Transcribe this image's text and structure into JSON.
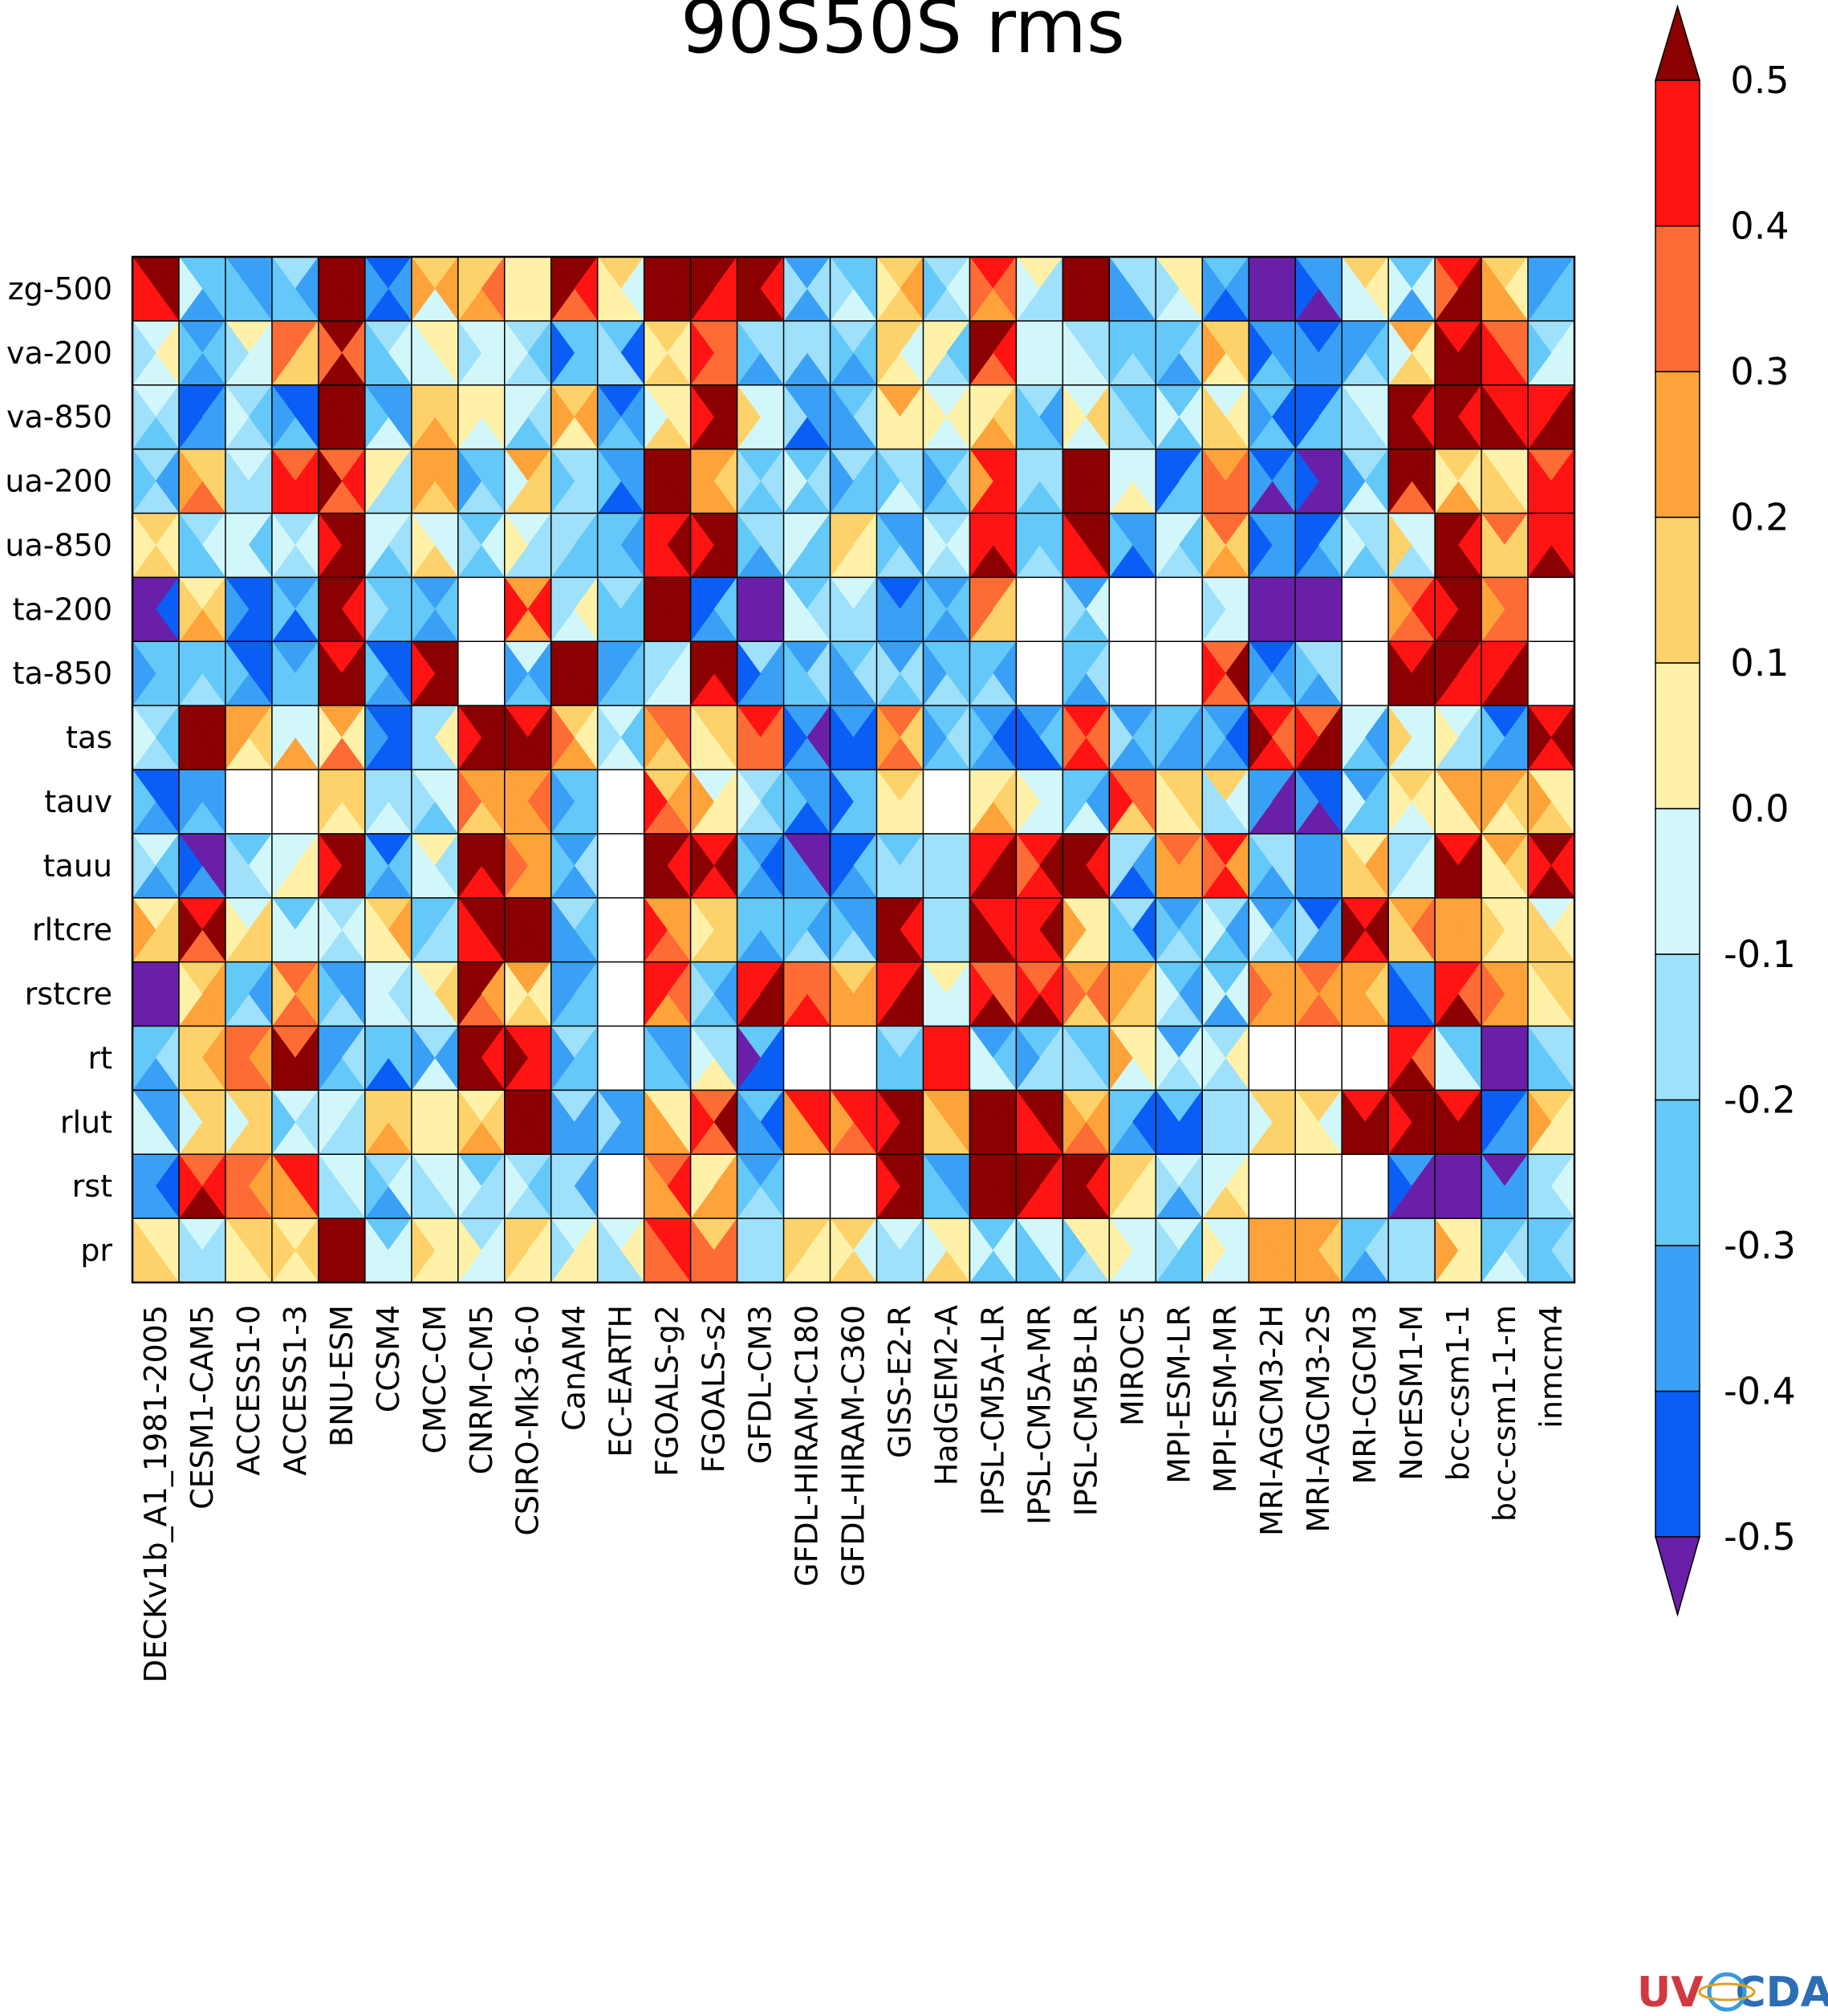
{
  "chart_data": {
    "type": "heatmap",
    "title": "90S50S rms",
    "cell_split": "each cell is divided into 4 triangles (top, right, bottom, left)",
    "rows": [
      "zg-500",
      "va-200",
      "va-850",
      "ua-200",
      "ua-850",
      "ta-200",
      "ta-850",
      "tas",
      "tauv",
      "tauu",
      "rltcre",
      "rstcre",
      "rt",
      "rlut",
      "rst",
      "pr"
    ],
    "columns": [
      "DECKv1b_A1_1981-2005",
      "CESM1-CAM5",
      "ACCESS1-0",
      "ACCESS1-3",
      "BNU-ESM",
      "CCSM4",
      "CMCC-CM",
      "CNRM-CM5",
      "CSIRO-Mk3-6-0",
      "CanAM4",
      "EC-EARTH",
      "FGOALS-g2",
      "FGOALS-s2",
      "GFDL-CM3",
      "GFDL-HIRAM-C180",
      "GFDL-HIRAM-C360",
      "GISS-E2-R",
      "HadGEM2-A",
      "IPSL-CM5A-LR",
      "IPSL-CM5A-MR",
      "IPSL-CM5B-LR",
      "MIROC5",
      "MPI-ESM-LR",
      "MPI-ESM-MR",
      "MRI-AGCM3-2H",
      "MRI-AGCM3-2S",
      "MRI-CGCM3",
      "NorESM1-M",
      "bcc-csm1-1",
      "bcc-csm1-1-m",
      "inmcm4"
    ],
    "row_base_values": [
      [
        0.55,
        -0.2,
        -0.3,
        -0.25,
        0.55,
        -0.4,
        0.1,
        0.2,
        0.15,
        0.45,
        0.0,
        0.55,
        0.5,
        0.55,
        -0.3,
        -0.2,
        0.1,
        -0.2,
        0.4,
        -0.1,
        0.55,
        -0.2,
        -0.1,
        -0.4,
        -0.6,
        -0.5,
        0.05,
        -0.2,
        0.5,
        0.15,
        -0.3
      ],
      [
        -0.1,
        -0.25,
        0.0,
        0.25,
        0.45,
        -0.2,
        0.05,
        -0.1,
        -0.15,
        -0.35,
        -0.3,
        0.15,
        0.45,
        -0.2,
        -0.2,
        -0.25,
        0.05,
        -0.1,
        0.45,
        -0.1,
        -0.1,
        -0.2,
        -0.3,
        0.1,
        -0.4,
        -0.4,
        -0.2,
        0.1,
        0.5,
        0.35,
        -0.1
      ],
      [
        -0.2,
        -0.35,
        -0.1,
        -0.3,
        0.55,
        -0.2,
        0.1,
        0.1,
        -0.1,
        0.15,
        -0.3,
        0.05,
        0.55,
        0.0,
        -0.3,
        -0.25,
        0.1,
        0.0,
        0.2,
        -0.2,
        0.0,
        -0.2,
        -0.1,
        0.05,
        -0.35,
        -0.3,
        -0.1,
        0.55,
        0.55,
        0.55,
        0.55
      ],
      [
        -0.2,
        0.2,
        -0.2,
        0.4,
        0.4,
        -0.1,
        0.15,
        -0.2,
        0.1,
        -0.2,
        -0.3,
        0.55,
        0.25,
        -0.25,
        -0.2,
        -0.25,
        -0.1,
        -0.2,
        0.35,
        -0.15,
        0.55,
        0.05,
        -0.3,
        0.35,
        -0.4,
        -0.45,
        -0.2,
        0.5,
        0.2,
        0.05,
        0.4
      ],
      [
        0.1,
        -0.15,
        -0.2,
        -0.1,
        0.5,
        -0.2,
        0.05,
        -0.1,
        -0.1,
        -0.2,
        -0.3,
        0.55,
        0.5,
        -0.2,
        -0.15,
        0.0,
        -0.2,
        -0.1,
        0.55,
        -0.2,
        0.55,
        -0.3,
        -0.1,
        0.3,
        -0.35,
        -0.3,
        -0.15,
        0.0,
        0.55,
        0.25,
        0.5
      ],
      [
        -0.6,
        0.2,
        -0.35,
        -0.3,
        0.55,
        -0.2,
        -0.2,
        9,
        0.3,
        0.0,
        -0.2,
        0.55,
        -0.3,
        -0.6,
        -0.15,
        -0.15,
        -0.4,
        -0.3,
        0.2,
        9,
        -0.2,
        9,
        9,
        -0.1,
        -0.6,
        -0.6,
        9,
        0.35,
        0.55,
        0.3,
        9
      ],
      [
        -0.3,
        -0.3,
        -0.35,
        -0.3,
        0.55,
        -0.35,
        0.55,
        9,
        -0.2,
        0.55,
        -0.3,
        -0.1,
        0.5,
        -0.3,
        -0.2,
        -0.2,
        -0.2,
        -0.2,
        -0.2,
        9,
        -0.25,
        9,
        9,
        0.5,
        -0.3,
        -0.3,
        9,
        0.55,
        0.55,
        0.55,
        9
      ],
      [
        -0.2,
        0.55,
        0.15,
        0.1,
        0.2,
        -0.35,
        -0.1,
        0.55,
        0.55,
        0.2,
        -0.2,
        0.25,
        0.05,
        0.4,
        -0.4,
        -0.45,
        0.3,
        -0.2,
        -0.3,
        -0.4,
        0.4,
        -0.3,
        -0.3,
        -0.3,
        0.45,
        0.45,
        -0.2,
        0.05,
        -0.1,
        -0.3,
        0.55
      ],
      [
        -0.35,
        -0.25,
        9,
        9,
        0.2,
        -0.1,
        -0.15,
        0.2,
        0.25,
        -0.2,
        9,
        0.3,
        0.1,
        -0.15,
        -0.4,
        -0.35,
        0.15,
        9,
        0.15,
        0.1,
        -0.2,
        0.3,
        0.05,
        0.0,
        -0.45,
        -0.45,
        -0.2,
        0.05,
        0.15,
        0.2,
        0.2
      ],
      [
        -0.2,
        -0.4,
        -0.15,
        0.05,
        0.55,
        -0.35,
        -0.1,
        0.5,
        0.3,
        -0.2,
        9,
        0.55,
        0.5,
        -0.4,
        -0.4,
        -0.35,
        -0.1,
        -0.2,
        0.55,
        0.5,
        0.55,
        -0.3,
        0.3,
        0.3,
        -0.3,
        -0.4,
        0.1,
        -0.1,
        0.55,
        0.1,
        0.45
      ],
      [
        0.1,
        0.45,
        0.05,
        -0.1,
        -0.2,
        0.2,
        -0.2,
        0.55,
        0.55,
        -0.25,
        9,
        0.3,
        0.1,
        -0.3,
        -0.2,
        -0.3,
        0.55,
        -0.1,
        0.55,
        0.55,
        0.1,
        -0.3,
        -0.2,
        -0.2,
        -0.2,
        -0.3,
        0.55,
        0.2,
        0.3,
        0.0,
        0.1
      ],
      [
        -0.6,
        0.2,
        -0.25,
        0.3,
        -0.3,
        -0.1,
        0.05,
        0.4,
        0.15,
        -0.3,
        9,
        0.3,
        -0.2,
        0.55,
        0.4,
        0.2,
        0.55,
        -0.1,
        0.45,
        0.4,
        0.3,
        0.15,
        -0.2,
        -0.2,
        0.25,
        0.25,
        0.2,
        -0.4,
        0.45,
        0.3,
        0.15
      ],
      [
        -0.3,
        0.25,
        0.3,
        0.45,
        -0.2,
        -0.35,
        -0.2,
        0.55,
        0.55,
        -0.2,
        9,
        -0.3,
        -0.1,
        -0.4,
        9,
        9,
        -0.2,
        0.35,
        -0.2,
        -0.3,
        -0.2,
        0.1,
        -0.2,
        -0.1,
        9,
        9,
        9,
        0.5,
        -0.2,
        -0.6,
        -0.2
      ],
      [
        -0.2,
        0.1,
        0.1,
        -0.2,
        -0.1,
        0.25,
        0.05,
        0.15,
        0.55,
        -0.3,
        -0.3,
        0.1,
        0.4,
        -0.3,
        0.35,
        0.35,
        0.55,
        0.15,
        0.55,
        0.55,
        0.3,
        -0.35,
        -0.3,
        -0.2,
        0.05,
        0.1,
        0.55,
        0.55,
        0.55,
        -0.35,
        0.15
      ],
      [
        -0.4,
        0.5,
        0.25,
        0.4,
        -0.2,
        -0.2,
        -0.1,
        -0.1,
        -0.2,
        -0.2,
        9,
        0.3,
        0.1,
        -0.25,
        9,
        9,
        0.55,
        -0.3,
        0.55,
        0.55,
        0.5,
        0.05,
        -0.2,
        0.0,
        9,
        9,
        9,
        -0.5,
        -0.6,
        -0.5,
        -0.2
      ],
      [
        0.05,
        -0.15,
        0.15,
        0.15,
        0.55,
        -0.1,
        0.1,
        -0.05,
        0.1,
        0.0,
        -0.05,
        0.45,
        0.3,
        -0.2,
        0.1,
        0.05,
        -0.2,
        0.1,
        -0.15,
        -0.15,
        -0.1,
        -0.05,
        -0.1,
        0.0,
        0.15,
        0.25,
        -0.2,
        -0.1,
        0.1,
        -0.15,
        -0.2
      ]
    ],
    "missing_value_marker": 9,
    "colorbar": {
      "levels": [
        -0.5,
        -0.4,
        -0.3,
        -0.2,
        -0.1,
        0.0,
        0.1,
        0.2,
        0.3,
        0.4,
        0.5
      ],
      "tick_labels": [
        "-0.5",
        "-0.4",
        "-0.3",
        "-0.2",
        "-0.1",
        "0.0",
        "0.1",
        "0.2",
        "0.3",
        "0.4",
        "0.5"
      ],
      "colors": [
        "#0a5ef5",
        "#3aa0f5",
        "#64c8f8",
        "#9fe0fa",
        "#d2f7fa",
        "#fff1a8",
        "#fed26a",
        "#fda33a",
        "#fd6c35",
        "#ff1414"
      ],
      "under_color": "#6a1fa8",
      "over_color": "#8b0000",
      "extend": "both"
    },
    "missing_color": "#ffffff"
  },
  "logo": {
    "part1": "UV",
    "part2": "CDAT",
    "colors": {
      "uv": "#d0393f",
      "cdat": "#2d6db5"
    }
  }
}
